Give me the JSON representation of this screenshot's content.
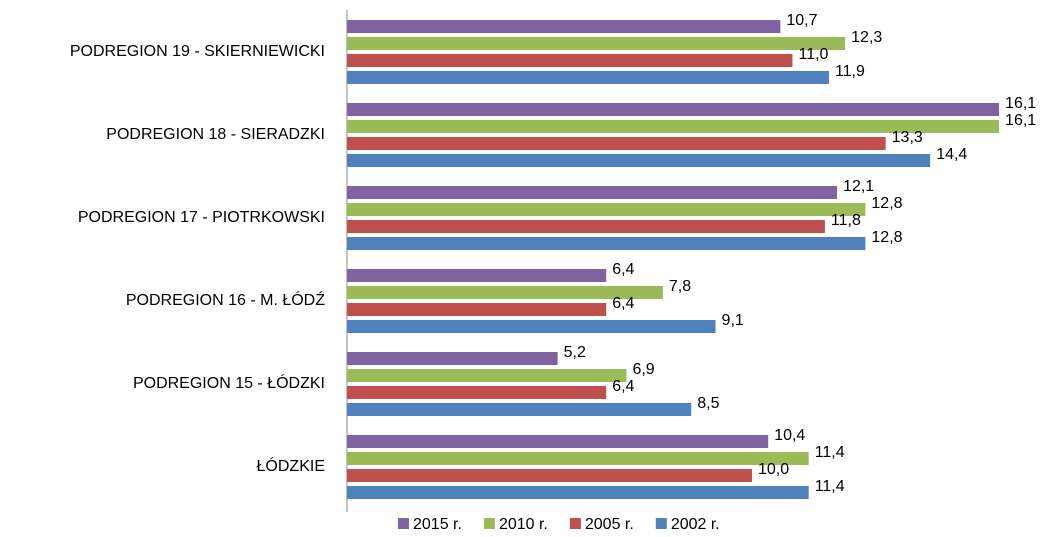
{
  "chart_data": {
    "type": "hbar",
    "categories": [
      "PODREGION 19 - SKIERNIEWICKI",
      "PODREGION 18 - SIERADZKI",
      "PODREGION 17 - PIOTRKOWSKI",
      "PODREGION 16 - M. ŁÓDŹ",
      "PODREGION 15 - ŁÓDZKI",
      "ŁÓDZKIE"
    ],
    "series": [
      {
        "name": "2015 r.",
        "color": "#8064a2",
        "values": [
          10.7,
          16.1,
          12.1,
          6.4,
          5.2,
          10.4
        ],
        "value_labels": [
          "10,7",
          "16,1",
          "12,1",
          "6,4",
          "5,2",
          "10,4"
        ]
      },
      {
        "name": "2010 r.",
        "color": "#9bbb59",
        "values": [
          12.3,
          16.1,
          12.8,
          7.8,
          6.9,
          11.4
        ],
        "value_labels": [
          "12,3",
          "16,1",
          "12,8",
          "7,8",
          "6,9",
          "11,4"
        ]
      },
      {
        "name": "2005 r.",
        "color": "#c0504d",
        "values": [
          11.0,
          13.3,
          11.8,
          6.4,
          6.4,
          10.0
        ],
        "value_labels": [
          "11,0",
          "13,3",
          "11,8",
          "6,4",
          "6,4",
          "10,0"
        ]
      },
      {
        "name": "2002 r.",
        "color": "#4f81bd",
        "values": [
          11.9,
          14.4,
          12.8,
          9.1,
          8.5,
          11.4
        ],
        "value_labels": [
          "11,9",
          "14,4",
          "12,8",
          "9,1",
          "8,5",
          "11,4"
        ]
      }
    ],
    "xlim": [
      0,
      16
    ]
  }
}
